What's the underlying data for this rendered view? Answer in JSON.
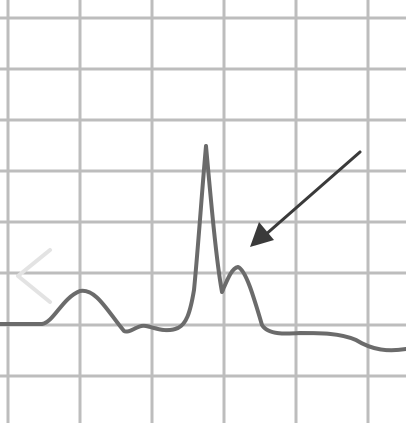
{
  "colors": {
    "background": "#ffffff",
    "grid": "#bdbdbd",
    "trace": "#6b6b6b",
    "arrow": "#3a3a3a",
    "nav_chevron": "#e3e3e3"
  },
  "icons": {
    "navigation": "chevron-left-icon",
    "pointer": "arrow-icon"
  }
}
